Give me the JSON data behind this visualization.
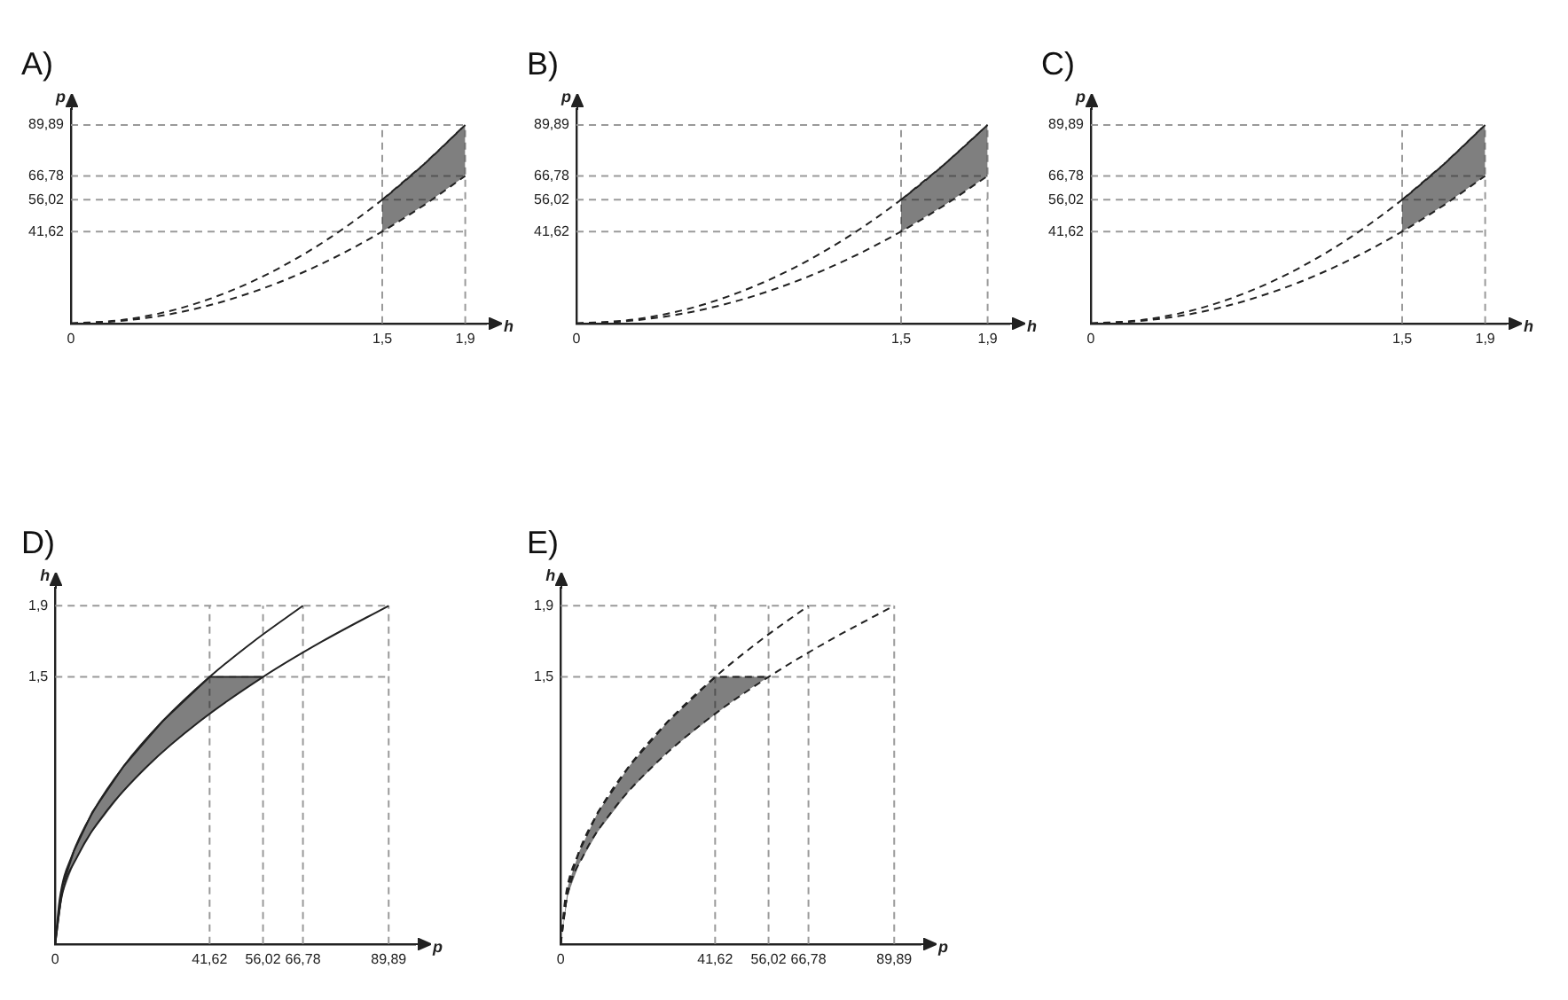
{
  "chart_data": [
    {
      "type": "line",
      "title": "A)",
      "xlabel": "h",
      "ylabel": "p",
      "xlim": [
        0,
        2
      ],
      "ylim": [
        0,
        97
      ],
      "xticks": [
        {
          "value": 0,
          "label": "0"
        },
        {
          "value": 1.5,
          "label": "1,5"
        },
        {
          "value": 1.9,
          "label": "1,9"
        }
      ],
      "yticks": [
        {
          "value": 41.62,
          "label": "41,62"
        },
        {
          "value": 56.02,
          "label": "56,02"
        },
        {
          "value": 66.78,
          "label": "66,78"
        },
        {
          "value": 89.89,
          "label": "89,89"
        }
      ],
      "grid": true,
      "line_style": "dashed",
      "series": [
        {
          "color": "#222222",
          "x": [
            0,
            0.25,
            0.5,
            0.75,
            1,
            1.25,
            1.5,
            1.7,
            1.9
          ],
          "values": [
            0,
            1.6,
            6.2,
            14.0,
            24.9,
            38.9,
            56.02,
            72.0,
            89.89
          ]
        },
        {
          "color": "#222222",
          "x": [
            0,
            0.25,
            0.5,
            0.75,
            1,
            1.25,
            1.5,
            1.7,
            1.9
          ],
          "values": [
            0,
            1.2,
            4.6,
            10.4,
            18.5,
            28.9,
            41.62,
            53.5,
            66.78
          ]
        },
        {
          "color": "#222222",
          "x": [
            1.5,
            1.7,
            1.9
          ],
          "values": [
            56.02,
            72.0,
            89.89
          ],
          "lower": [
            41.62,
            53.5,
            66.78
          ],
          "upper": [
            56.02,
            72.0,
            89.89
          ]
        }
      ]
    },
    {
      "type": "line",
      "title": "B)",
      "xlabel": "h",
      "ylabel": "p",
      "xlim": [
        0,
        2
      ],
      "ylim": [
        0,
        97
      ],
      "xticks": [
        {
          "value": 0,
          "label": "0"
        },
        {
          "value": 1.5,
          "label": "1,5"
        },
        {
          "value": 1.9,
          "label": "1,9"
        }
      ],
      "yticks": [
        {
          "value": 41.62,
          "label": "41,62"
        },
        {
          "value": 56.02,
          "label": "56,02"
        },
        {
          "value": 66.78,
          "label": "66,78"
        },
        {
          "value": 89.89,
          "label": "89,89"
        }
      ],
      "grid": true,
      "line_style": "dashed",
      "series": [
        {
          "color": "#222222",
          "x": [
            0,
            0.25,
            0.5,
            0.75,
            1,
            1.25,
            1.5,
            1.7,
            1.9
          ],
          "values": [
            0,
            1.6,
            6.2,
            14.0,
            24.9,
            38.9,
            56.02,
            72.0,
            89.89
          ]
        },
        {
          "color": "#222222",
          "x": [
            0,
            0.25,
            0.5,
            0.75,
            1,
            1.25,
            1.5,
            1.7,
            1.9
          ],
          "values": [
            0,
            1.2,
            4.6,
            10.4,
            18.5,
            28.9,
            41.62,
            53.5,
            66.78
          ]
        },
        {
          "color": "#222222",
          "x": [
            1.5,
            1.7,
            1.9
          ],
          "values": [
            56.02,
            72.0,
            89.89
          ],
          "lower": [
            41.62,
            53.5,
            66.78
          ],
          "upper": [
            56.02,
            72.0,
            89.89
          ]
        }
      ]
    },
    {
      "type": "line",
      "title": "C)",
      "xlabel": "h",
      "ylabel": "p",
      "xlim": [
        0,
        2
      ],
      "ylim": [
        0,
        97
      ],
      "xticks": [
        {
          "value": 0,
          "label": "0"
        },
        {
          "value": 1.5,
          "label": "1,5"
        },
        {
          "value": 1.9,
          "label": "1,9"
        }
      ],
      "yticks": [
        {
          "value": 41.62,
          "label": "41,62"
        },
        {
          "value": 56.02,
          "label": "56,02"
        },
        {
          "value": 66.78,
          "label": "66,78"
        },
        {
          "value": 89.89,
          "label": "89,89"
        }
      ],
      "grid": true,
      "line_style": "dashed",
      "series": [
        {
          "color": "#222222",
          "x": [
            0,
            0.25,
            0.5,
            0.75,
            1,
            1.25,
            1.5,
            1.7,
            1.9
          ],
          "values": [
            0,
            1.6,
            6.2,
            14.0,
            24.9,
            38.9,
            56.02,
            72.0,
            89.89
          ]
        },
        {
          "color": "#222222",
          "x": [
            0,
            0.25,
            0.5,
            0.75,
            1,
            1.25,
            1.5,
            1.7,
            1.9
          ],
          "values": [
            0,
            1.2,
            4.6,
            10.4,
            18.5,
            28.9,
            41.62,
            53.5,
            66.78
          ]
        },
        {
          "color": "#222222",
          "x": [
            1.5,
            1.7,
            1.9
          ],
          "values": [
            56.02,
            72.0,
            89.89
          ],
          "lower": [
            41.62,
            53.5,
            66.78
          ],
          "upper": [
            56.02,
            72.0,
            89.89
          ]
        }
      ]
    },
    {
      "type": "line",
      "title": "D)",
      "xlabel": "p",
      "ylabel": "h",
      "xlim": [
        0,
        97
      ],
      "ylim": [
        0,
        2
      ],
      "xticks": [
        {
          "value": 0,
          "label": "0"
        },
        {
          "value": 41.62,
          "label": "41,62"
        },
        {
          "value": 56.02,
          "label": "56,02"
        },
        {
          "value": 66.78,
          "label": "66,78"
        },
        {
          "value": 89.89,
          "label": "89,89"
        }
      ],
      "yticks": [
        {
          "value": 1.5,
          "label": "1,5"
        },
        {
          "value": 1.9,
          "label": "1,9"
        }
      ],
      "grid": true,
      "line_style": "solid",
      "series": [
        {
          "color": "#222222",
          "x": [
            0,
            1.2,
            4.6,
            10.4,
            18.5,
            28.9,
            41.62,
            53.5,
            66.78
          ],
          "values": [
            0,
            0.25,
            0.5,
            0.75,
            1,
            1.25,
            1.5,
            1.7,
            1.9
          ]
        },
        {
          "color": "#222222",
          "x": [
            0,
            1.6,
            6.2,
            14.0,
            24.9,
            38.9,
            56.02,
            72.0,
            89.89
          ],
          "values": [
            0,
            0.25,
            0.5,
            0.75,
            1,
            1.25,
            1.5,
            1.7,
            1.9
          ]
        },
        {
          "color": "#222222",
          "x": [
            0,
            2,
            5,
            10,
            18.5,
            28.9,
            41.62,
            50,
            56.02
          ],
          "values": [
            0,
            0.33,
            0.52,
            0.74,
            1,
            1.25,
            1.5,
            1.5,
            1.5
          ],
          "lower": [
            0,
            0.28,
            0.45,
            0.63,
            0.86,
            1.08,
            1.29,
            1.42,
            1.5
          ],
          "upper": [
            0,
            0.33,
            0.52,
            0.74,
            1,
            1.25,
            1.5,
            1.5,
            1.5
          ]
        }
      ]
    },
    {
      "type": "line",
      "title": "E)",
      "xlabel": "p",
      "ylabel": "h",
      "xlim": [
        0,
        97
      ],
      "ylim": [
        0,
        2
      ],
      "xticks": [
        {
          "value": 0,
          "label": "0"
        },
        {
          "value": 41.62,
          "label": "41,62"
        },
        {
          "value": 56.02,
          "label": "56,02"
        },
        {
          "value": 66.78,
          "label": "66,78"
        },
        {
          "value": 89.89,
          "label": "89,89"
        }
      ],
      "yticks": [
        {
          "value": 1.5,
          "label": "1,5"
        },
        {
          "value": 1.9,
          "label": "1,9"
        }
      ],
      "grid": true,
      "line_style": "dashed",
      "series": [
        {
          "color": "#222222",
          "x": [
            0,
            1.2,
            4.6,
            10.4,
            18.5,
            28.9,
            41.62,
            53.5,
            66.78
          ],
          "values": [
            0,
            0.25,
            0.5,
            0.75,
            1,
            1.25,
            1.5,
            1.7,
            1.9
          ]
        },
        {
          "color": "#222222",
          "x": [
            0,
            1.6,
            6.2,
            14.0,
            24.9,
            38.9,
            56.02,
            72.0,
            89.89
          ],
          "values": [
            0,
            0.25,
            0.5,
            0.75,
            1,
            1.25,
            1.5,
            1.7,
            1.9
          ]
        },
        {
          "color": "#222222",
          "x": [
            0,
            2,
            5,
            10,
            18.5,
            28.9,
            41.62,
            50,
            56.02
          ],
          "values": [
            0,
            0.33,
            0.52,
            0.74,
            1,
            1.25,
            1.5,
            1.5,
            1.5
          ],
          "lower": [
            0,
            0.28,
            0.45,
            0.63,
            0.86,
            1.08,
            1.29,
            1.42,
            1.5
          ],
          "upper": [
            0,
            0.33,
            0.52,
            0.74,
            1,
            1.25,
            1.5,
            1.5,
            1.5
          ]
        }
      ]
    }
  ]
}
